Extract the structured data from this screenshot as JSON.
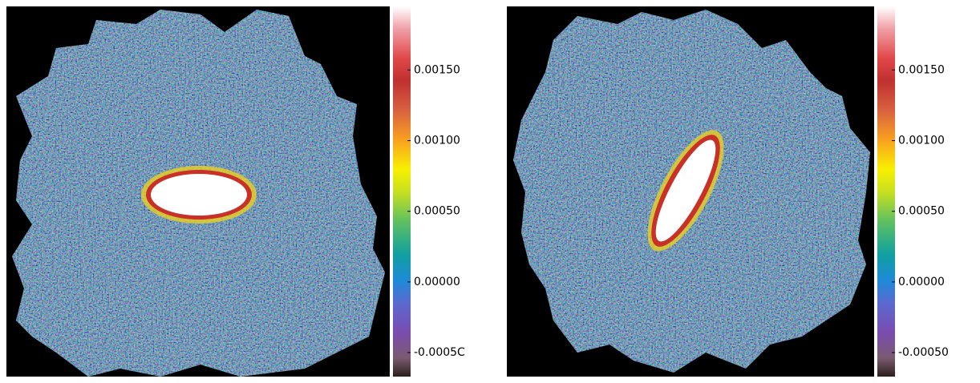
{
  "chart_data": [
    {
      "type": "image",
      "clim": [
        -0.00067,
        0.00195
      ],
      "cticks": [
        {
          "value": -0.0005,
          "label": "-0.0005C"
        },
        {
          "value": 0,
          "label": "0.00000"
        },
        {
          "value": 0.0005,
          "label": "0.00050"
        },
        {
          "value": 0.001,
          "label": "0.00100"
        },
        {
          "value": 0.0015,
          "label": "0.00150"
        }
      ]
    },
    {
      "type": "image",
      "clim": [
        -0.00067,
        0.00195
      ],
      "cticks": [
        {
          "value": -0.0005,
          "label": "-0.00050"
        },
        {
          "value": 0,
          "label": "0.00000"
        },
        {
          "value": 0.0005,
          "label": "0.00050"
        },
        {
          "value": 0.001,
          "label": "0.00100"
        },
        {
          "value": 0.0015,
          "label": "0.00150"
        }
      ]
    }
  ]
}
